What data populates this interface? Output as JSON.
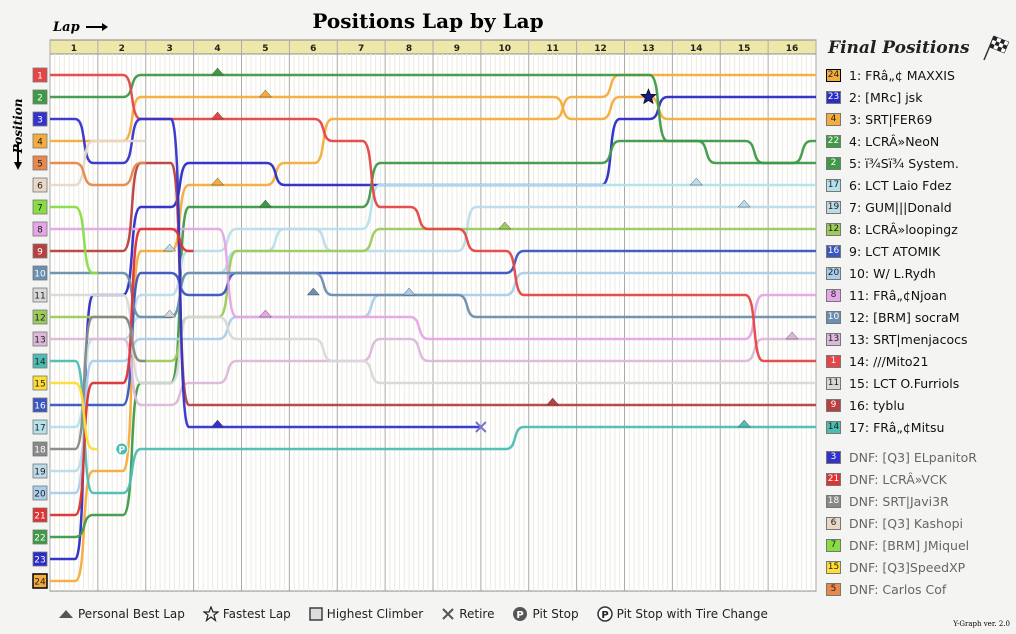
{
  "title": "Positions Lap by Lap",
  "x_caption": "Lap",
  "y_caption": "Position",
  "final_title": "Final Positions",
  "version": "Y-Graph ver. 2.0",
  "legend": [
    {
      "icon": "personal-best-icon",
      "label": "Personal Best Lap"
    },
    {
      "icon": "fastest-lap-icon",
      "label": "Fastest Lap"
    },
    {
      "icon": "highest-climber-icon",
      "label": "Highest Climber"
    },
    {
      "icon": "retire-icon",
      "label": "Retire"
    },
    {
      "icon": "pit-stop-icon",
      "label": "Pit Stop"
    },
    {
      "icon": "pit-stop-tire-icon",
      "label": "Pit Stop with Tire Change"
    }
  ],
  "final_positions": [
    {
      "grid": "24",
      "text": "1: FRâ„¢ MAXXIS",
      "color": "#f4ad3d",
      "dnf": false
    },
    {
      "grid": "23",
      "text": "2: [MRc] jsk",
      "color": "#2b2bc8",
      "dnf": false
    },
    {
      "grid": "4",
      "text": "3: SRT|FER69",
      "color": "#f4ad3d",
      "dnf": false
    },
    {
      "grid": "22",
      "text": "4: LCRÂ»NeoN",
      "color": "#3f9a48",
      "dnf": false
    },
    {
      "grid": "2",
      "text": "5: ï¾Sï¾ System.",
      "color": "#3f9a48",
      "dnf": false
    },
    {
      "grid": "17",
      "text": "6: LCT Laio Fdez",
      "color": "#b3e2ec",
      "dnf": false
    },
    {
      "grid": "19",
      "text": "7: GUM|||Donald",
      "color": "#bcdbea",
      "dnf": false
    },
    {
      "grid": "12",
      "text": "8: LCRÂ»loopingz",
      "color": "#9ccb5c",
      "dnf": false
    },
    {
      "grid": "16",
      "text": "9: LCT ATOMIK",
      "color": "#3a56c0",
      "dnf": false
    },
    {
      "grid": "20",
      "text": "10: W/ L.Rydh",
      "color": "#a9cdeb",
      "dnf": false
    },
    {
      "grid": "8",
      "text": "11: FRâ„¢Njoan",
      "color": "#e6a5e6",
      "dnf": false
    },
    {
      "grid": "10",
      "text": "12: [BRM] socraM",
      "color": "#6a8fb0",
      "dnf": false
    },
    {
      "grid": "13",
      "text": "13: SRT|menjacocs",
      "color": "#ddb7da",
      "dnf": false
    },
    {
      "grid": "1",
      "text": "14: ///Mito21",
      "color": "#e64545",
      "dnf": false
    },
    {
      "grid": "11",
      "text": "15: LCT O.Furriols",
      "color": "#d8d8d8",
      "dnf": false
    },
    {
      "grid": "9",
      "text": "16: tyblu",
      "color": "#b84040",
      "dnf": false
    },
    {
      "grid": "14",
      "text": "17: FRâ„¢Mitsu",
      "color": "#4cbdb3",
      "dnf": false
    },
    {
      "grid": "3",
      "text": "DNF: [Q3] ELpanitoR",
      "color": "#3333cc",
      "dnf": true
    },
    {
      "grid": "21",
      "text": "DNF: LCRÂ»VCK",
      "color": "#dd3333",
      "dnf": true
    },
    {
      "grid": "18",
      "text": "DNF: SRT|Javi3R",
      "color": "#888888",
      "dnf": true
    },
    {
      "grid": "6",
      "text": "DNF: [Q3] Kashopi",
      "color": "#e8d8c8",
      "dnf": true
    },
    {
      "grid": "7",
      "text": "DNF: [BRM] JMiquel",
      "color": "#88dd44",
      "dnf": true
    },
    {
      "grid": "15",
      "text": "DNF: [Q3]SpeedXP",
      "color": "#ffdd33",
      "dnf": true
    },
    {
      "grid": "5",
      "text": "DNF: Carlos Cof",
      "color": "#e8884a",
      "dnf": true
    }
  ],
  "chart_data": {
    "type": "line",
    "laps": [
      "1",
      "2",
      "3",
      "4",
      "5",
      "6",
      "7",
      "8",
      "9",
      "10",
      "11",
      "12",
      "13",
      "14",
      "15",
      "16"
    ],
    "positions": [
      "1",
      "2",
      "3",
      "4",
      "5",
      "6",
      "7",
      "8",
      "9",
      "10",
      "11",
      "12",
      "13",
      "14",
      "15",
      "16",
      "17",
      "18",
      "19",
      "20",
      "21",
      "22",
      "23",
      "24"
    ],
    "grid_colors": [
      "#e64545",
      "#3f9a48",
      "#3333cc",
      "#f4ad3d",
      "#e8884a",
      "#e8d8c8",
      "#88dd44",
      "#e6a5e6",
      "#b84040",
      "#6a8fb0",
      "#d8d8d8",
      "#9ccb5c",
      "#ddb7da",
      "#4cbdb3",
      "#ffdd33",
      "#3a56c0",
      "#b3e2ec",
      "#888888",
      "#bcdbea",
      "#a9cdeb",
      "#dd3333",
      "#3f9a48",
      "#2b2bc8",
      "#f4ad3d"
    ],
    "series": [
      {
        "name": "FRâ„¢ MAXXIS",
        "color": "#f4ad3d",
        "start": 24,
        "positions": [
          19,
          9,
          6,
          6,
          5,
          3,
          3,
          3,
          3,
          3,
          2,
          1,
          1,
          1,
          1,
          1
        ]
      },
      {
        "name": "[MRc] jsk",
        "color": "#2b2bc8",
        "start": 23,
        "positions": [
          11,
          7,
          5,
          5,
          6,
          6,
          6,
          6,
          6,
          6,
          6,
          3,
          2,
          2,
          2,
          2
        ]
      },
      {
        "name": "SRT|FER69",
        "color": "#f4ad3d",
        "start": 4,
        "positions": [
          4,
          2,
          2,
          2,
          2,
          2,
          2,
          2,
          2,
          2,
          3,
          2,
          3,
          3,
          3,
          3
        ]
      },
      {
        "name": "LCRÂ»NeoN",
        "color": "#3f9a48",
        "start": 22,
        "positions": [
          21,
          15,
          7,
          7,
          7,
          7,
          5,
          5,
          5,
          5,
          5,
          4,
          4,
          4,
          5,
          4
        ]
      },
      {
        "name": "ï¾Sï¾ System.",
        "color": "#3f9a48",
        "start": 2,
        "positions": [
          2,
          1,
          1,
          1,
          1,
          1,
          1,
          1,
          1,
          1,
          1,
          1,
          4,
          5,
          5,
          5
        ]
      },
      {
        "name": "LCT Laio Fdez",
        "color": "#b3e2ec",
        "start": 17,
        "positions": [
          13,
          12,
          10,
          9,
          8,
          8,
          6,
          6,
          6,
          6,
          6,
          6,
          6,
          6,
          6,
          6
        ]
      },
      {
        "name": "GUM|||Donald",
        "color": "#bcdbea",
        "start": 19,
        "positions": [
          15,
          11,
          9,
          8,
          8,
          9,
          9,
          9,
          7,
          7,
          7,
          7,
          7,
          7,
          7,
          7
        ]
      },
      {
        "name": "LCRÂ»loopingz",
        "color": "#9ccb5c",
        "start": 12,
        "positions": [
          12,
          14,
          12,
          9,
          9,
          9,
          8,
          8,
          8,
          8,
          8,
          8,
          8,
          8,
          8,
          8
        ]
      },
      {
        "name": "LCT ATOMIK",
        "color": "#3a56c0",
        "start": 16,
        "positions": [
          16,
          10,
          11,
          10,
          10,
          10,
          10,
          10,
          10,
          9,
          9,
          9,
          9,
          9,
          9,
          9
        ]
      },
      {
        "name": "W/ L.Rydh",
        "color": "#a9cdeb",
        "start": 20,
        "positions": [
          14,
          13,
          13,
          12,
          12,
          12,
          11,
          11,
          11,
          10,
          10,
          10,
          10,
          10,
          10,
          10
        ]
      },
      {
        "name": "FRâ„¢Njoan",
        "color": "#e6a5e6",
        "start": 8,
        "positions": [
          8,
          8,
          8,
          12,
          12,
          12,
          12,
          13,
          13,
          13,
          13,
          13,
          13,
          13,
          11,
          11
        ]
      },
      {
        "name": "[BRM] socraM",
        "color": "#6a8fb0",
        "start": 10,
        "positions": [
          10,
          12,
          10,
          10,
          10,
          11,
          11,
          11,
          12,
          12,
          12,
          12,
          12,
          12,
          12,
          12
        ]
      },
      {
        "name": "SRT|menjacocs",
        "color": "#ddb7da",
        "start": 13,
        "positions": [
          13,
          16,
          15,
          14,
          14,
          14,
          13,
          14,
          14,
          14,
          14,
          14,
          14,
          14,
          13,
          13
        ]
      },
      {
        "name": "///Mito21",
        "color": "#e64545",
        "start": 1,
        "positions": [
          1,
          3,
          3,
          3,
          3,
          4,
          7,
          8,
          9,
          11,
          11,
          11,
          11,
          11,
          14,
          14
        ]
      },
      {
        "name": "LCT O.Furriols",
        "color": "#d8d8d8",
        "start": 11,
        "positions": [
          11,
          15,
          12,
          13,
          13,
          14,
          15,
          15,
          15,
          15,
          15,
          15,
          15,
          15,
          15,
          15
        ]
      },
      {
        "name": "tyblu",
        "color": "#b84040",
        "start": 9,
        "positions": [
          9,
          5,
          16,
          16,
          16,
          16,
          16,
          16,
          16,
          16,
          16,
          16,
          16,
          16,
          16,
          16
        ]
      },
      {
        "name": "FRâ„¢Mitsu",
        "color": "#4cbdb3",
        "start": 14,
        "positions": [
          20,
          18,
          18,
          18,
          18,
          18,
          18,
          18,
          18,
          17,
          17,
          17,
          17,
          17,
          17,
          17
        ]
      },
      {
        "name": "[Q3] ELpanitoR",
        "color": "#3333cc",
        "start": 3,
        "positions": [
          5,
          3,
          17,
          17,
          17,
          17,
          17,
          17,
          17
        ]
      },
      {
        "name": "LCRÂ»VCK",
        "color": "#dd3333",
        "start": 21,
        "positions": [
          15,
          8,
          9
        ]
      },
      {
        "name": "SRT|Javi3R",
        "color": "#888888",
        "start": 18,
        "positions": [
          12,
          14
        ]
      },
      {
        "name": "[Q3] Kashopi",
        "color": "#e8d8c8",
        "start": 6,
        "positions": [
          4,
          4
        ]
      },
      {
        "name": "[BRM] JMiquel",
        "color": "#88dd44",
        "start": 7,
        "positions": [
          10
        ]
      },
      {
        "name": "[Q3]SpeedXP",
        "color": "#ffdd33",
        "start": 15,
        "positions": [
          18
        ]
      },
      {
        "name": "Carlos Cof",
        "color": "#e8884a",
        "start": 5,
        "positions": [
          6,
          5
        ]
      }
    ],
    "markers": [
      {
        "type": "personal-best",
        "series": "ï¾Sï¾ System.",
        "lap": 4
      },
      {
        "type": "personal-best",
        "series": "SRT|FER69",
        "lap": 5
      },
      {
        "type": "personal-best",
        "series": "FRâ„¢ MAXXIS",
        "lap": 4
      },
      {
        "type": "personal-best",
        "series": "///Mito21",
        "lap": 4
      },
      {
        "type": "personal-best",
        "series": "LCRÂ»NeoN",
        "lap": 5
      },
      {
        "type": "personal-best",
        "series": "GUM|||Donald",
        "lap": 3
      },
      {
        "type": "personal-best",
        "series": "LCRÂ»loopingz",
        "lap": 10
      },
      {
        "type": "personal-best",
        "series": "LCT Laio Fdez",
        "lap": 14
      },
      {
        "type": "personal-best",
        "series": "GUM|||Donald",
        "lap": 15
      },
      {
        "type": "personal-best",
        "series": "LCT O.Furriols",
        "lap": 3
      },
      {
        "type": "personal-best",
        "series": "[BRM] socraM",
        "lap": 6
      },
      {
        "type": "personal-best",
        "series": "W/ L.Rydh",
        "lap": 8
      },
      {
        "type": "personal-best",
        "series": "FRâ„¢Njoan",
        "lap": 5
      },
      {
        "type": "personal-best",
        "series": "tyblu",
        "lap": 11
      },
      {
        "type": "personal-best",
        "series": "[Q3] ELpanitoR",
        "lap": 4
      },
      {
        "type": "personal-best",
        "series": "FRâ„¢Mitsu",
        "lap": 15
      },
      {
        "type": "personal-best",
        "series": "SRT|menjacocs",
        "lap": 16
      },
      {
        "type": "fastest-lap",
        "series": "[MRc] jsk",
        "lap": 13
      },
      {
        "type": "retire",
        "series": "[Q3] ELpanitoR",
        "lap": 9
      },
      {
        "type": "pit-stop",
        "series": "FRâ„¢Mitsu",
        "lap": 2
      }
    ]
  }
}
